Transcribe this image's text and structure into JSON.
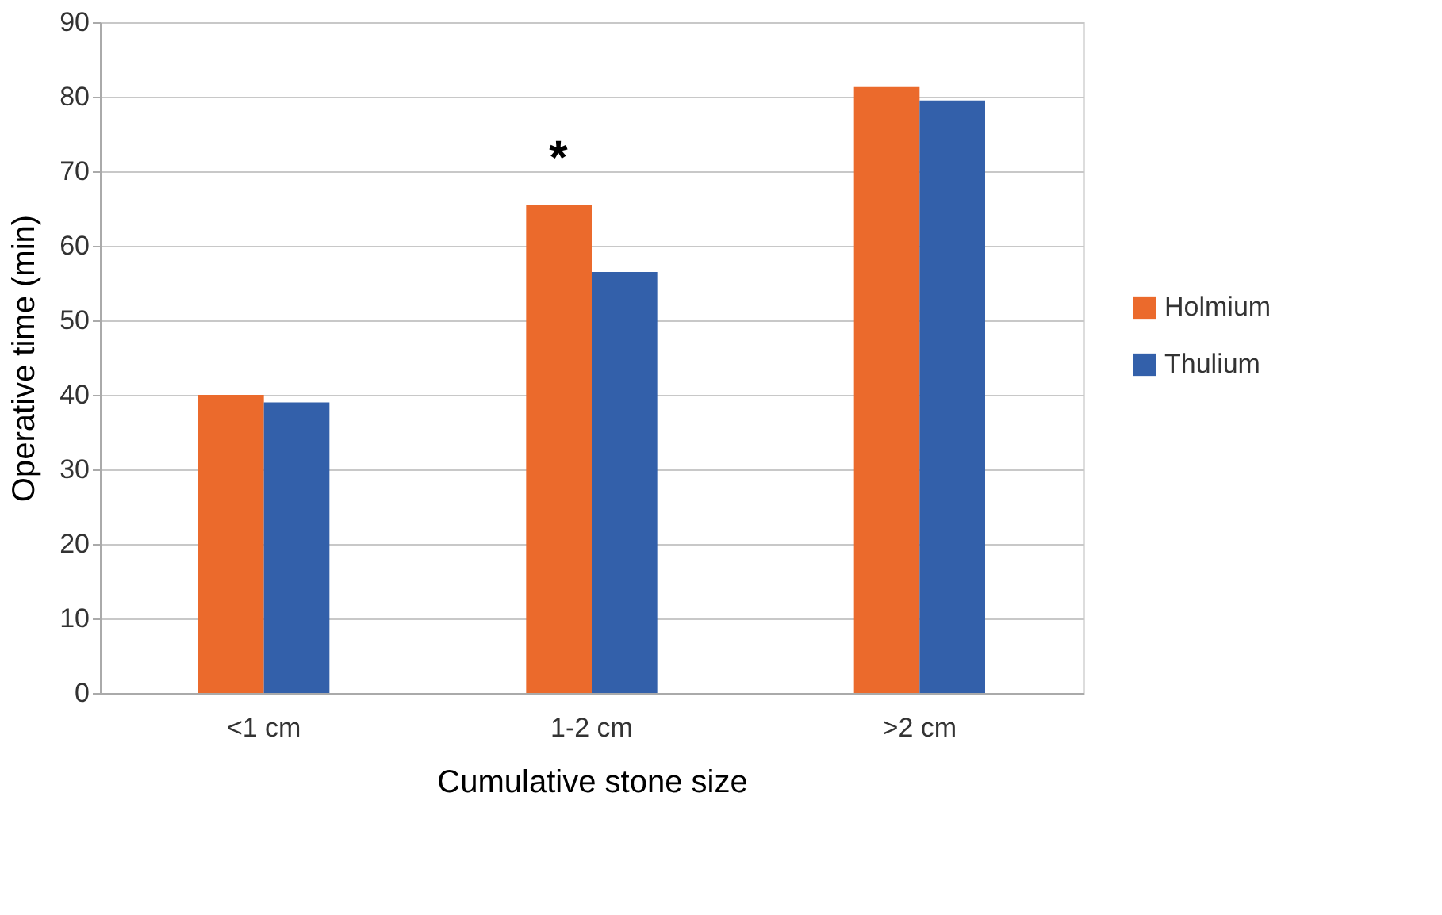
{
  "chart_data": {
    "type": "bar",
    "xlabel": "Cumulative stone size",
    "ylabel": "Operative time (min)",
    "categories": [
      "<1 cm",
      "1-2 cm",
      ">2 cm"
    ],
    "series": [
      {
        "name": "Holmium",
        "color": "#eb6a2c",
        "values": [
          40,
          65.5,
          81.3
        ]
      },
      {
        "name": "Thulium",
        "color": "#3360aa",
        "values": [
          39,
          56.5,
          79.5
        ]
      }
    ],
    "ylim": [
      0,
      90
    ],
    "yticks": [
      0,
      10,
      20,
      30,
      40,
      50,
      60,
      70,
      80,
      90
    ],
    "grid": "y",
    "legend": "right",
    "annotations": [
      "*"
    ]
  }
}
